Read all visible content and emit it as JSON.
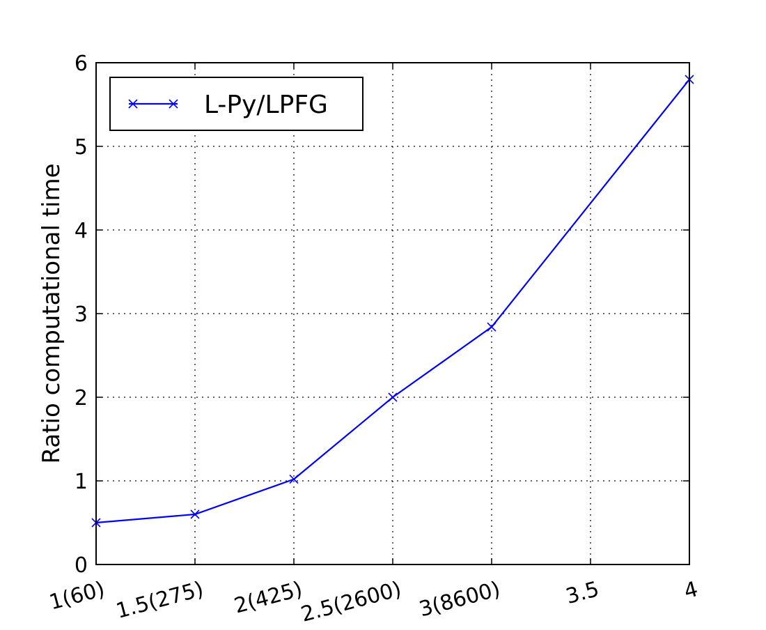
{
  "chart_data": {
    "type": "line",
    "x": [
      1,
      1.5,
      2,
      2.5,
      3,
      4
    ],
    "x_ticks": [
      1,
      1.5,
      2,
      2.5,
      3,
      3.5,
      4
    ],
    "x_tick_labels": [
      "1(60)",
      "1.5(275)",
      "2(425)",
      "2.5(2600)",
      "3(8600)",
      "3.5",
      "4"
    ],
    "xlim": [
      1,
      4
    ],
    "ylim": [
      0,
      6
    ],
    "y_ticks": [
      0,
      1,
      2,
      3,
      4,
      5,
      6
    ],
    "y_tick_labels": [
      "0",
      "1",
      "2",
      "3",
      "4",
      "5",
      "6"
    ],
    "ylabel": "Ratio computational time",
    "xlabel": "",
    "title": "",
    "grid": true,
    "legend_position": "top-left",
    "series": [
      {
        "name": "L-Py/LPFG",
        "marker": "x",
        "color": "#0000ff",
        "x": [
          1,
          1.5,
          2,
          2.5,
          3,
          4
        ],
        "y": [
          0.5,
          0.6,
          1.02,
          2.0,
          2.84,
          5.8
        ]
      }
    ]
  }
}
